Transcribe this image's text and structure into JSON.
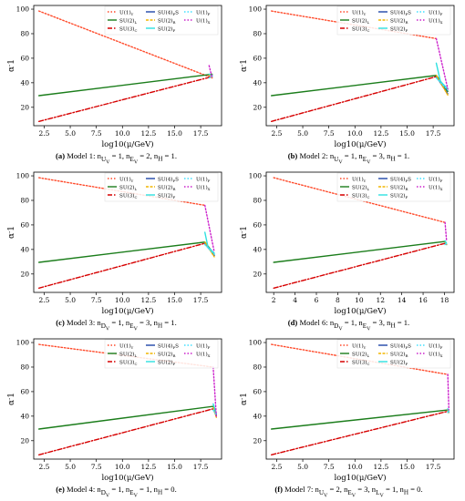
{
  "chart_data": [
    {
      "type": "line",
      "panel_label": "(a)",
      "caption": "Model 1: n_{U_V} = 1, n_{E_V} = 2, n_H = 1.",
      "xlabel": "log10(μ/GeV)",
      "ylabel": "α^-1",
      "xlim": [
        1.5,
        19.5
      ],
      "ylim": [
        5,
        103
      ],
      "xticks": [
        2.5,
        5.0,
        7.5,
        10.0,
        12.5,
        15.0,
        17.5
      ],
      "xtick_labels": [
        "2.5",
        "5.0",
        "7.5",
        "10.0",
        "12.5",
        "15.0",
        "17.5"
      ],
      "yticks": [
        20,
        40,
        60,
        80,
        100
      ],
      "legend_location": "top-right",
      "series": [
        {
          "name": "U(1)_Y",
          "color": "#ff4a2a",
          "dash": "1.5,2",
          "x": [
            2,
            18.6
          ],
          "y": [
            98.5,
            44
          ]
        },
        {
          "name": "SU(2)_L",
          "color": "#1b7d1b",
          "dash": "none",
          "x": [
            2,
            18.6
          ],
          "y": [
            29.5,
            47
          ]
        },
        {
          "name": "SU(3)_C",
          "color": "#d60000",
          "dash": "5,2,1.5,2",
          "x": [
            2,
            18.6
          ],
          "y": [
            8.5,
            45
          ]
        },
        {
          "name": "SU(4)_PS",
          "color": "#1f45a8",
          "dash": "none",
          "x": [
            18.3,
            18.6
          ],
          "y": [
            46,
            46
          ]
        },
        {
          "name": "SU(2)_R",
          "color": "#f2b600",
          "dash": "3,1.5",
          "x": [
            18.3,
            18.6
          ],
          "y": [
            46,
            46.5
          ]
        },
        {
          "name": "SU(2)_F",
          "color": "#2ee0e0",
          "dash": "none",
          "x": [
            18.3,
            18.6
          ],
          "y": [
            47,
            46
          ]
        },
        {
          "name": "U(1)_F",
          "color": "#40e0ff",
          "dash": "1.5,2",
          "x": [
            18.3,
            18.6
          ],
          "y": [
            44,
            45
          ]
        },
        {
          "name": "U(1)_X",
          "color": "#cc22cc",
          "dash": "1.5,2",
          "x": [
            18.3,
            18.6
          ],
          "y": [
            54,
            44
          ]
        }
      ]
    },
    {
      "type": "line",
      "panel_label": "(b)",
      "caption": "Model 2: n_{U_V} = 1, n_{E_V} = 3, n_H = 1.",
      "xlabel": "log10(μ/GeV)",
      "ylabel": "α^-1",
      "xlim": [
        1.5,
        19.5
      ],
      "ylim": [
        5,
        103
      ],
      "xticks": [
        2.5,
        5.0,
        7.5,
        10.0,
        12.5,
        15.0,
        17.5
      ],
      "xtick_labels": [
        "2.5",
        "5.0",
        "7.5",
        "10.0",
        "12.5",
        "15.0",
        "17.5"
      ],
      "yticks": [
        20,
        40,
        60,
        80,
        100
      ],
      "legend_location": "top-right",
      "series": [
        {
          "name": "U(1)_Y",
          "color": "#ff4a2a",
          "dash": "1.5,2",
          "x": [
            2,
            17.8
          ],
          "y": [
            98.5,
            76
          ]
        },
        {
          "name": "SU(2)_L",
          "color": "#1b7d1b",
          "dash": "none",
          "x": [
            2,
            17.8,
            18.9
          ],
          "y": [
            29.5,
            46,
            33
          ]
        },
        {
          "name": "SU(3)_C",
          "color": "#d60000",
          "dash": "5,2,1.5,2",
          "x": [
            2,
            17.8
          ],
          "y": [
            8.5,
            45
          ]
        },
        {
          "name": "SU(4)_PS",
          "color": "#1f45a8",
          "dash": "none",
          "x": [
            17.8,
            18.9
          ],
          "y": [
            45,
            31
          ]
        },
        {
          "name": "SU(2)_R",
          "color": "#f2b600",
          "dash": "3,1.5",
          "x": [
            17.8,
            18.9
          ],
          "y": [
            46,
            30
          ]
        },
        {
          "name": "SU(2)_F",
          "color": "#2ee0e0",
          "dash": "none",
          "x": [
            17.8,
            18.2,
            18.9
          ],
          "y": [
            56,
            41,
            35
          ]
        },
        {
          "name": "U(1)_F",
          "color": "#40e0ff",
          "dash": "1.5,2",
          "x": [
            17.8,
            18.9
          ],
          "y": [
            44,
            34
          ]
        },
        {
          "name": "U(1)_X",
          "color": "#cc22cc",
          "dash": "1.5,2",
          "x": [
            17.8,
            18.9
          ],
          "y": [
            76,
            35
          ]
        }
      ]
    },
    {
      "type": "line",
      "panel_label": "(c)",
      "caption": "Model 3: n_{D_V} = 1, n_{E_V} = 3, n_H = 1.",
      "xlabel": "log10(μ/GeV)",
      "ylabel": "α^-1",
      "xlim": [
        1.5,
        19.5
      ],
      "ylim": [
        5,
        103
      ],
      "xticks": [
        2.5,
        5.0,
        7.5,
        10.0,
        12.5,
        15.0,
        17.5
      ],
      "xtick_labels": [
        "2.5",
        "5.0",
        "7.5",
        "10.0",
        "12.5",
        "15.0",
        "17.5"
      ],
      "yticks": [
        20,
        40,
        60,
        80,
        100
      ],
      "legend_location": "top-right",
      "series": [
        {
          "name": "U(1)_Y",
          "color": "#ff4a2a",
          "dash": "1.5,2",
          "x": [
            2,
            17.9
          ],
          "y": [
            98.5,
            76
          ]
        },
        {
          "name": "SU(2)_L",
          "color": "#1b7d1b",
          "dash": "none",
          "x": [
            2,
            17.9,
            18.8
          ],
          "y": [
            29.5,
            46,
            36
          ]
        },
        {
          "name": "SU(3)_C",
          "color": "#d60000",
          "dash": "5,2,1.5,2",
          "x": [
            2,
            17.9
          ],
          "y": [
            8.5,
            45
          ]
        },
        {
          "name": "SU(4)_PS",
          "color": "#1f45a8",
          "dash": "none",
          "x": [
            17.9,
            18.8
          ],
          "y": [
            45,
            35
          ]
        },
        {
          "name": "SU(2)_R",
          "color": "#f2b600",
          "dash": "3,1.5",
          "x": [
            17.9,
            18.8
          ],
          "y": [
            46,
            34
          ]
        },
        {
          "name": "SU(2)_F",
          "color": "#2ee0e0",
          "dash": "none",
          "x": [
            17.9,
            18.2,
            18.8
          ],
          "y": [
            54,
            42,
            37
          ]
        },
        {
          "name": "U(1)_F",
          "color": "#40e0ff",
          "dash": "1.5,2",
          "x": [
            17.9,
            18.8
          ],
          "y": [
            44,
            36
          ]
        },
        {
          "name": "U(1)_X",
          "color": "#cc22cc",
          "dash": "1.5,2",
          "x": [
            17.9,
            18.8
          ],
          "y": [
            76,
            38
          ]
        }
      ]
    },
    {
      "type": "line",
      "panel_label": "(d)",
      "caption": "Model 6: n_{D_V} = 1, n_{E_V} = 3, n_H = 1.",
      "xlabel": "log10(μ/GeV)",
      "ylabel": "α^-1",
      "xlim": [
        1.3,
        18.9
      ],
      "ylim": [
        5,
        103
      ],
      "xticks": [
        2,
        4,
        6,
        8,
        10,
        12,
        14,
        16,
        18
      ],
      "xtick_labels": [
        "2",
        "4",
        "6",
        "8",
        "10",
        "12",
        "14",
        "16",
        "18"
      ],
      "yticks": [
        20,
        40,
        60,
        80,
        100
      ],
      "legend_location": "top-right",
      "series": [
        {
          "name": "U(1)_Y",
          "color": "#ff4a2a",
          "dash": "1.5,2",
          "x": [
            2,
            18.05
          ],
          "y": [
            98.5,
            62
          ]
        },
        {
          "name": "SU(2)_L",
          "color": "#1b7d1b",
          "dash": "none",
          "x": [
            2,
            18.05
          ],
          "y": [
            29.5,
            46.5
          ]
        },
        {
          "name": "SU(3)_C",
          "color": "#d60000",
          "dash": "5,2,1.5,2",
          "x": [
            2,
            18.05
          ],
          "y": [
            8.5,
            45
          ]
        },
        {
          "name": "SU(4)_PS",
          "color": "#1f45a8",
          "dash": "none",
          "x": [
            18.05,
            18.2
          ],
          "y": [
            45,
            44
          ]
        },
        {
          "name": "SU(2)_R",
          "color": "#f2b600",
          "dash": "3,1.5",
          "x": [
            18.05,
            18.2
          ],
          "y": [
            46,
            44
          ]
        },
        {
          "name": "SU(2)_F",
          "color": "#2ee0e0",
          "dash": "none",
          "x": [
            18.05,
            18.2
          ],
          "y": [
            47,
            45
          ]
        },
        {
          "name": "U(1)_F",
          "color": "#40e0ff",
          "dash": "1.5,2",
          "x": [
            18.05,
            18.2
          ],
          "y": [
            44,
            45
          ]
        },
        {
          "name": "U(1)_X",
          "color": "#cc22cc",
          "dash": "1.5,2",
          "x": [
            18.05,
            18.2
          ],
          "y": [
            62,
            47
          ]
        }
      ]
    },
    {
      "type": "line",
      "panel_label": "(e)",
      "caption": "Model 4: n_{D_V} = 1, n_{E_V} = 1, n_H = 0.",
      "xlabel": "log10(μ/GeV)",
      "ylabel": "α^-1",
      "xlim": [
        1.5,
        19.5
      ],
      "ylim": [
        5,
        103
      ],
      "xticks": [
        2.5,
        5.0,
        7.5,
        10.0,
        12.5,
        15.0,
        17.5
      ],
      "xtick_labels": [
        "2.5",
        "5.0",
        "7.5",
        "10.0",
        "12.5",
        "15.0",
        "17.5"
      ],
      "yticks": [
        20,
        40,
        60,
        80,
        100
      ],
      "legend_location": "top-right",
      "series": [
        {
          "name": "U(1)_Y",
          "color": "#ff4a2a",
          "dash": "1.5,2",
          "x": [
            2,
            18.7
          ],
          "y": [
            98.5,
            80
          ]
        },
        {
          "name": "SU(2)_L",
          "color": "#1b7d1b",
          "dash": "none",
          "x": [
            2,
            18.7,
            19.0
          ],
          "y": [
            29.5,
            48,
            41
          ]
        },
        {
          "name": "SU(3)_C",
          "color": "#d60000",
          "dash": "5,2,1.5,2",
          "x": [
            2,
            18.7
          ],
          "y": [
            8.5,
            46
          ]
        },
        {
          "name": "SU(4)_PS",
          "color": "#1f45a8",
          "dash": "none",
          "x": [
            18.7,
            19.0
          ],
          "y": [
            46,
            40
          ]
        },
        {
          "name": "SU(2)_R",
          "color": "#f2b600",
          "dash": "3,1.5",
          "x": [
            18.7,
            19.0
          ],
          "y": [
            47,
            39
          ]
        },
        {
          "name": "SU(2)_F",
          "color": "#2ee0e0",
          "dash": "none",
          "x": [
            18.7,
            19.0
          ],
          "y": [
            50,
            42
          ]
        },
        {
          "name": "U(1)_F",
          "color": "#40e0ff",
          "dash": "1.5,2",
          "x": [
            18.7,
            19.0
          ],
          "y": [
            45,
            41
          ]
        },
        {
          "name": "U(1)_X",
          "color": "#cc22cc",
          "dash": "1.5,2",
          "x": [
            18.7,
            19.0
          ],
          "y": [
            80,
            40
          ]
        }
      ]
    },
    {
      "type": "line",
      "panel_label": "(f)",
      "caption": "Model 7: n_{U_V} = 2, n_{E_V} = 3, n_{L_V} = 1, n_H = 0.",
      "xlabel": "log10(μ/GeV)",
      "ylabel": "α^-1",
      "xlim": [
        1.5,
        19.5
      ],
      "ylim": [
        5,
        103
      ],
      "xticks": [
        2.5,
        5.0,
        7.5,
        10.0,
        12.5,
        15.0,
        17.5
      ],
      "xtick_labels": [
        "2.5",
        "5.0",
        "7.5",
        "10.0",
        "12.5",
        "15.0",
        "17.5"
      ],
      "yticks": [
        20,
        40,
        60,
        80,
        100
      ],
      "legend_location": "top-right",
      "series": [
        {
          "name": "U(1)_Y",
          "color": "#ff4a2a",
          "dash": "1.5,2",
          "x": [
            2,
            18.9
          ],
          "y": [
            98.5,
            74
          ]
        },
        {
          "name": "SU(2)_L",
          "color": "#1b7d1b",
          "dash": "none",
          "x": [
            2,
            18.9
          ],
          "y": [
            29.5,
            45
          ]
        },
        {
          "name": "SU(3)_C",
          "color": "#d60000",
          "dash": "5,2,1.5,2",
          "x": [
            2,
            18.9
          ],
          "y": [
            8.5,
            44
          ]
        },
        {
          "name": "SU(4)_PS",
          "color": "#1f45a8",
          "dash": "none",
          "x": [
            18.9,
            19.0
          ],
          "y": [
            44,
            43
          ]
        },
        {
          "name": "SU(2)_R",
          "color": "#f2b600",
          "dash": "3,1.5",
          "x": [
            18.9,
            19.0
          ],
          "y": [
            45,
            42
          ]
        },
        {
          "name": "SU(2)_F",
          "color": "#2ee0e0",
          "dash": "none",
          "x": [
            18.9,
            19.0
          ],
          "y": [
            46,
            44
          ]
        },
        {
          "name": "U(1)_F",
          "color": "#40e0ff",
          "dash": "1.5,2",
          "x": [
            18.9,
            19.0
          ],
          "y": [
            43,
            44
          ]
        },
        {
          "name": "U(1)_X",
          "color": "#cc22cc",
          "dash": "1.5,2",
          "x": [
            18.9,
            19.0
          ],
          "y": [
            74,
            45
          ]
        }
      ]
    }
  ]
}
